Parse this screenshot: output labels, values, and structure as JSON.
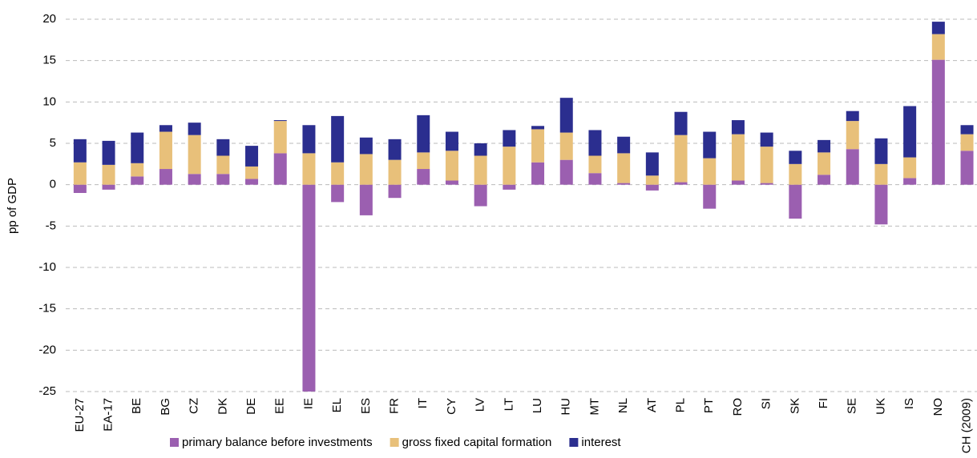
{
  "chart_data": {
    "type": "stacked-bar",
    "y_label": "pp of GDP",
    "categories": [
      "EU-27",
      "EA-17",
      "BE",
      "BG",
      "CZ",
      "DK",
      "DE",
      "EE",
      "IE",
      "EL",
      "ES",
      "FR",
      "IT",
      "CY",
      "LV",
      "LT",
      "LU",
      "HU",
      "MT",
      "NL",
      "AT",
      "PL",
      "PT",
      "RO",
      "SI",
      "SK",
      "FI",
      "SE",
      "UK",
      "IS",
      "NO",
      "CH (2009)"
    ],
    "series": [
      {
        "name": "primary balance before investments",
        "color": "#9b5fb0",
        "values": [
          -1.0,
          -0.6,
          1.0,
          1.9,
          1.3,
          1.3,
          0.7,
          3.8,
          -25,
          -2.1,
          -3.7,
          -1.6,
          1.9,
          0.5,
          -2.6,
          -0.6,
          2.7,
          3.0,
          1.4,
          0.2,
          -0.7,
          0.3,
          -2.9,
          0.5,
          0.2,
          -4.1,
          1.2,
          4.3,
          -4.8,
          0.8,
          15.1,
          4.1
        ]
      },
      {
        "name": "gross fixed capital formation",
        "color": "#e8c07a",
        "values": [
          2.7,
          2.4,
          1.6,
          4.5,
          4.7,
          2.2,
          1.5,
          3.9,
          3.8,
          2.7,
          3.7,
          3.0,
          2.0,
          3.6,
          3.5,
          4.6,
          4.0,
          3.3,
          2.1,
          3.6,
          1.1,
          5.7,
          3.2,
          5.6,
          4.4,
          2.5,
          2.7,
          3.4,
          2.5,
          2.5,
          3.1,
          2.0
        ]
      },
      {
        "name": "interest",
        "color": "#2b2e8f",
        "values": [
          2.8,
          2.9,
          3.7,
          0.8,
          1.5,
          2.0,
          2.5,
          0.1,
          3.4,
          5.6,
          2.0,
          2.5,
          4.5,
          2.3,
          1.5,
          2.0,
          0.4,
          4.2,
          3.1,
          2.0,
          2.8,
          2.8,
          3.2,
          1.7,
          1.7,
          1.6,
          1.5,
          1.2,
          3.1,
          6.2,
          1.5,
          1.1
        ]
      }
    ],
    "ylim": [
      -25,
      20
    ],
    "yticks": [
      -25,
      -20,
      -15,
      -10,
      -5,
      0,
      5,
      10,
      15,
      20
    ],
    "grid": true,
    "legend": "bottom"
  }
}
